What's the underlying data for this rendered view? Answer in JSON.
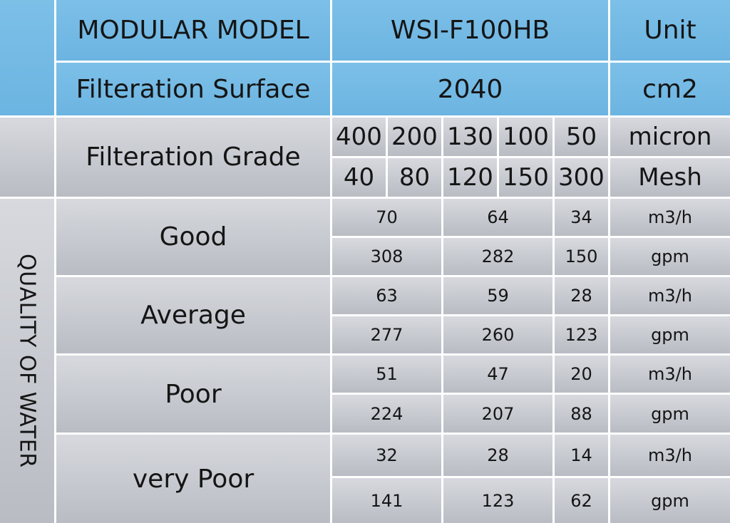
{
  "header": {
    "model_label": "MODULAR MODEL",
    "model_value": "WSI-F100HB",
    "unit_label": "Unit"
  },
  "surface": {
    "label": "Filteration Surface",
    "value": "2040",
    "unit": "cm2"
  },
  "grade": {
    "label": "Filteration Grade",
    "micron": [
      "400",
      "200",
      "130",
      "100",
      "50"
    ],
    "micron_unit": "micron",
    "mesh": [
      "40",
      "80",
      "120",
      "150",
      "300"
    ],
    "mesh_unit": "Mesh"
  },
  "quality_label": "QUALITY OF WATER",
  "rows": [
    {
      "label": "Good",
      "m3h": [
        "70",
        "64",
        "34"
      ],
      "gpm": [
        "308",
        "282",
        "150"
      ]
    },
    {
      "label": "Average",
      "m3h": [
        "63",
        "59",
        "28"
      ],
      "gpm": [
        "277",
        "260",
        "123"
      ]
    },
    {
      "label": "Poor",
      "m3h": [
        "51",
        "47",
        "20"
      ],
      "gpm": [
        "224",
        "207",
        "88"
      ]
    },
    {
      "label": "very Poor",
      "m3h": [
        "32",
        "28",
        "14"
      ],
      "gpm": [
        "141",
        "123",
        "62"
      ]
    }
  ],
  "units": {
    "flow_metric": "m3/h",
    "flow_us": "gpm"
  }
}
